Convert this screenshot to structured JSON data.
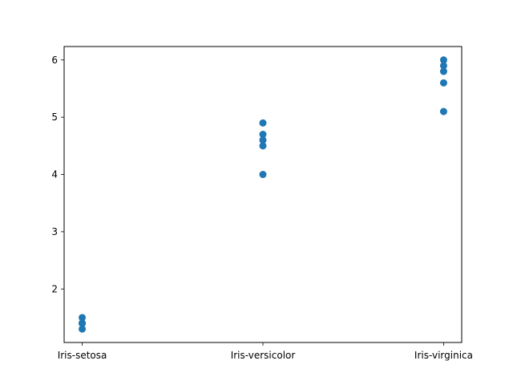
{
  "chart_data": {
    "type": "scatter",
    "title": "",
    "xlabel": "",
    "ylabel": "",
    "categories": [
      "Iris-setosa",
      "Iris-versicolor",
      "Iris-virginica"
    ],
    "x": [
      "Iris-setosa",
      "Iris-setosa",
      "Iris-setosa",
      "Iris-setosa",
      "Iris-setosa",
      "Iris-versicolor",
      "Iris-versicolor",
      "Iris-versicolor",
      "Iris-versicolor",
      "Iris-versicolor",
      "Iris-virginica",
      "Iris-virginica",
      "Iris-virginica",
      "Iris-virginica",
      "Iris-virginica"
    ],
    "y": [
      1.4,
      1.4,
      1.3,
      1.5,
      1.4,
      4.7,
      4.5,
      4.9,
      4.0,
      4.6,
      6.0,
      5.1,
      5.9,
      5.6,
      5.8
    ],
    "ylim": [
      1.065,
      6.235
    ],
    "yticks": [
      2,
      3,
      4,
      5,
      6
    ],
    "marker_color": "#1f77b4",
    "grid": false,
    "legend": "none"
  }
}
